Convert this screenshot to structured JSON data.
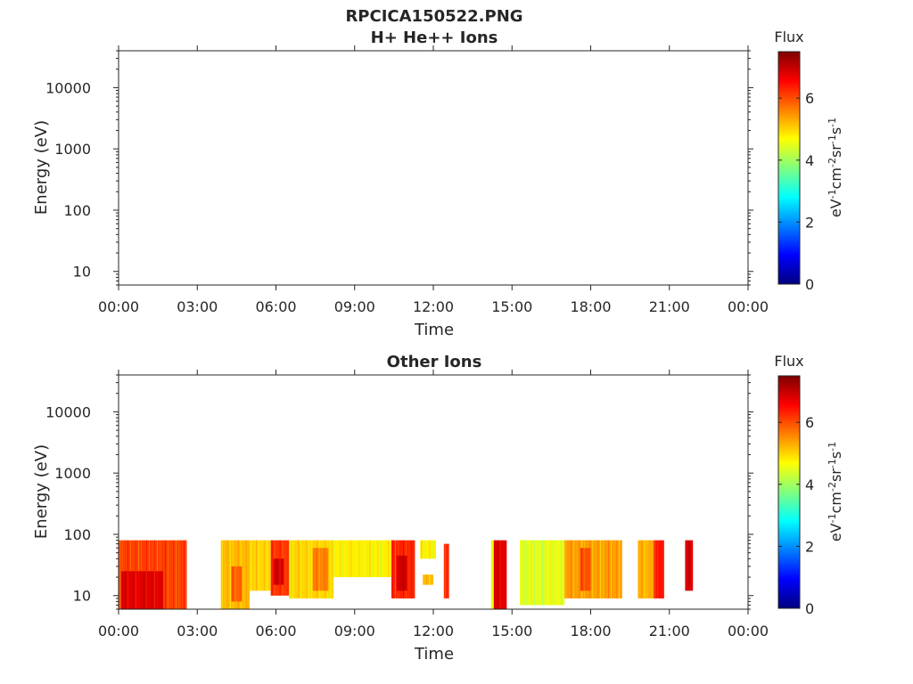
{
  "figure_title": "RPCICA150522.PNG",
  "colorbar": {
    "title": "Flux",
    "label_base": [
      "eV",
      "cm",
      "sr",
      "s"
    ],
    "label_exp": [
      "-1",
      "-2",
      "-1",
      "-1"
    ],
    "ticks": [
      "0",
      "2",
      "4",
      "6"
    ],
    "range": [
      0,
      7.5
    ],
    "colormap": "jet"
  },
  "chart_data": [
    {
      "type": "heatmap",
      "title": "H+ He++ Ions",
      "xlabel": "Time",
      "ylabel": "Energy (eV)",
      "x_ticks": [
        "00:00",
        "03:00",
        "06:00",
        "09:00",
        "12:00",
        "15:00",
        "18:00",
        "21:00",
        "00:00"
      ],
      "xlim_hours": [
        0,
        24
      ],
      "y_ticks": [
        "10",
        "100",
        "1000",
        "10000"
      ],
      "y_scale": "log",
      "ylim": [
        6,
        40000
      ],
      "blocks": []
    },
    {
      "type": "heatmap",
      "title": "Other Ions",
      "xlabel": "Time",
      "ylabel": "Energy (eV)",
      "x_ticks": [
        "00:00",
        "03:00",
        "06:00",
        "09:00",
        "12:00",
        "15:00",
        "18:00",
        "21:00",
        "00:00"
      ],
      "xlim_hours": [
        0,
        24
      ],
      "y_ticks": [
        "10",
        "100",
        "1000",
        "10000"
      ],
      "y_scale": "log",
      "ylim": [
        6,
        40000
      ],
      "blocks": [
        {
          "t0": 0.0,
          "t1": 2.6,
          "e0": 6,
          "e1": 80,
          "flux": 6.1
        },
        {
          "t0": 0.1,
          "t1": 1.7,
          "e0": 6,
          "e1": 25,
          "flux": 6.8
        },
        {
          "t0": 3.9,
          "t1": 5.0,
          "e0": 6,
          "e1": 80,
          "flux": 5.2
        },
        {
          "t0": 4.3,
          "t1": 4.7,
          "e0": 8,
          "e1": 30,
          "flux": 5.9
        },
        {
          "t0": 5.0,
          "t1": 5.8,
          "e0": 12,
          "e1": 80,
          "flux": 5.0
        },
        {
          "t0": 5.8,
          "t1": 6.5,
          "e0": 10,
          "e1": 80,
          "flux": 6.2
        },
        {
          "t0": 5.9,
          "t1": 6.3,
          "e0": 15,
          "e1": 40,
          "flux": 6.9
        },
        {
          "t0": 6.5,
          "t1": 8.2,
          "e0": 9,
          "e1": 80,
          "flux": 5.0
        },
        {
          "t0": 7.4,
          "t1": 8.0,
          "e0": 12,
          "e1": 60,
          "flux": 5.6
        },
        {
          "t0": 8.2,
          "t1": 10.4,
          "e0": 20,
          "e1": 80,
          "flux": 4.8
        },
        {
          "t0": 10.4,
          "t1": 11.3,
          "e0": 9,
          "e1": 80,
          "flux": 6.3
        },
        {
          "t0": 10.6,
          "t1": 11.0,
          "e0": 12,
          "e1": 45,
          "flux": 6.9
        },
        {
          "t0": 11.5,
          "t1": 12.1,
          "e0": 40,
          "e1": 80,
          "flux": 4.8
        },
        {
          "t0": 11.6,
          "t1": 12.0,
          "e0": 15,
          "e1": 22,
          "flux": 5.2
        },
        {
          "t0": 12.4,
          "t1": 12.6,
          "e0": 9,
          "e1": 70,
          "flux": 6.3
        },
        {
          "t0": 14.3,
          "t1": 14.8,
          "e0": 6,
          "e1": 80,
          "flux": 6.8
        },
        {
          "t0": 14.2,
          "t1": 14.3,
          "e0": 6,
          "e1": 80,
          "flux": 4.6
        },
        {
          "t0": 15.3,
          "t1": 17.0,
          "e0": 7,
          "e1": 80,
          "flux": 4.5
        },
        {
          "t0": 17.0,
          "t1": 19.2,
          "e0": 9,
          "e1": 80,
          "flux": 5.4
        },
        {
          "t0": 17.6,
          "t1": 18.0,
          "e0": 12,
          "e1": 60,
          "flux": 6.0
        },
        {
          "t0": 19.8,
          "t1": 20.4,
          "e0": 9,
          "e1": 80,
          "flux": 5.3
        },
        {
          "t0": 20.4,
          "t1": 20.8,
          "e0": 9,
          "e1": 80,
          "flux": 6.4
        },
        {
          "t0": 21.6,
          "t1": 21.9,
          "e0": 12,
          "e1": 80,
          "flux": 6.8
        }
      ]
    }
  ]
}
